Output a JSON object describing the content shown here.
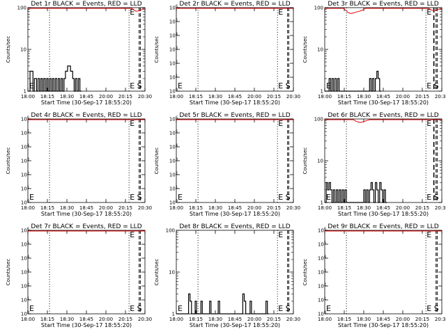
{
  "chart_data": [
    {
      "type": "line",
      "title": "Det 1r BLACK = Events, RED = LLD",
      "xlabel": "Start Time (30-Sep-17 18:55:20)",
      "ylabel": "Counts/sec",
      "yscale": "log",
      "ytick_labels": [
        "1",
        "10",
        "100"
      ],
      "ylim": [
        1,
        100
      ],
      "events": [
        [
          0,
          1
        ],
        [
          0.15,
          3
        ],
        [
          0.35,
          1
        ],
        [
          0.45,
          2
        ],
        [
          0.6,
          1
        ],
        [
          0.7,
          2
        ],
        [
          0.8,
          1
        ],
        [
          0.9,
          2
        ],
        [
          1.0,
          1
        ],
        [
          1.1,
          2
        ],
        [
          1.2,
          1
        ],
        [
          1.3,
          2
        ],
        [
          1.4,
          1
        ],
        [
          1.5,
          2
        ],
        [
          1.6,
          1
        ],
        [
          1.7,
          2
        ],
        [
          1.8,
          1
        ],
        [
          1.9,
          2
        ],
        [
          2.0,
          1
        ],
        [
          2.1,
          2
        ],
        [
          2.2,
          1
        ],
        [
          2.3,
          2
        ],
        [
          2.4,
          1
        ],
        [
          2.5,
          2
        ],
        [
          2.6,
          3
        ],
        [
          2.75,
          4
        ],
        [
          2.95,
          3
        ],
        [
          3.1,
          2
        ],
        [
          3.2,
          1
        ],
        [
          3.3,
          2
        ],
        [
          3.4,
          1
        ],
        [
          3.5,
          2
        ],
        [
          3.6,
          1
        ]
      ],
      "lld": [
        [
          0,
          100
        ],
        [
          7.2,
          100
        ],
        [
          7.35,
          90
        ],
        [
          7.5,
          85
        ],
        [
          7.7,
          88
        ],
        [
          7.85,
          92
        ],
        [
          8.0,
          100
        ],
        [
          8.1,
          100
        ]
      ]
    },
    {
      "type": "line",
      "title": "Det 2r BLACK = Events, RED = LLD",
      "xlabel": "Start Time (30-Sep-17 18:55:20)",
      "ylabel": "Counts/sec",
      "yscale": "log",
      "ytick_labels": [
        "10^0",
        "10^1",
        "10^2",
        "10^3",
        "10^4",
        "10^5",
        "10^6"
      ],
      "ylim": [
        1,
        1000000
      ],
      "events": [],
      "lld": [
        [
          0,
          1000000
        ],
        [
          8.1,
          1000000
        ]
      ]
    },
    {
      "type": "line",
      "title": "Det 3r BLACK = Events, RED = LLD",
      "xlabel": "Start Time (30-Sep-17 18:55:20)",
      "ylabel": "Counts/sec",
      "yscale": "log",
      "ytick_labels": [
        "1",
        "10",
        "100"
      ],
      "ylim": [
        1,
        100
      ],
      "events": [
        [
          0,
          1
        ],
        [
          0.3,
          2
        ],
        [
          0.4,
          1
        ],
        [
          0.5,
          2
        ],
        [
          0.6,
          1
        ],
        [
          0.7,
          2
        ],
        [
          0.8,
          1
        ],
        [
          0.9,
          2
        ],
        [
          1.0,
          1
        ],
        [
          3.0,
          1
        ],
        [
          3.1,
          2
        ],
        [
          3.2,
          1
        ],
        [
          3.3,
          2
        ],
        [
          3.4,
          1
        ],
        [
          3.5,
          2
        ],
        [
          3.6,
          3
        ],
        [
          3.7,
          2
        ],
        [
          3.8,
          1
        ]
      ],
      "lld": [
        [
          0,
          100
        ],
        [
          1.3,
          100
        ],
        [
          1.45,
          90
        ],
        [
          1.6,
          80
        ],
        [
          1.8,
          75
        ],
        [
          2.0,
          78
        ],
        [
          2.2,
          82
        ],
        [
          2.4,
          85
        ],
        [
          2.6,
          90
        ],
        [
          2.8,
          100
        ],
        [
          7.2,
          100
        ],
        [
          7.35,
          92
        ],
        [
          7.5,
          88
        ],
        [
          7.7,
          90
        ],
        [
          7.9,
          95
        ],
        [
          8.1,
          100
        ]
      ]
    },
    {
      "type": "line",
      "title": "Det 4r BLACK = Events, RED = LLD",
      "xlabel": "Start Time (30-Sep-17 18:55:20)",
      "ylabel": "Counts/sec",
      "yscale": "log",
      "ytick_labels": [
        "10^0",
        "10^1",
        "10^2",
        "10^3",
        "10^4",
        "10^5",
        "10^6"
      ],
      "ylim": [
        1,
        1000000
      ],
      "events": [],
      "lld": [
        [
          0,
          1000000
        ],
        [
          8.1,
          1000000
        ]
      ]
    },
    {
      "type": "line",
      "title": "Det 5r BLACK = Events, RED = LLD",
      "xlabel": "Start Time (30-Sep-17 18:55:20)",
      "ylabel": "Counts/sec",
      "yscale": "log",
      "ytick_labels": [
        "10^0",
        "10^1",
        "10^2",
        "10^3",
        "10^4",
        "10^5",
        "10^6"
      ],
      "ylim": [
        1,
        1000000
      ],
      "events": [],
      "lld": [
        [
          0,
          1000000
        ],
        [
          8.1,
          1000000
        ]
      ]
    },
    {
      "type": "line",
      "title": "Det 6r BLACK = Events, RED = LLD",
      "xlabel": "Start Time (30-Sep-17 18:55:20)",
      "ylabel": "Counts/sec",
      "yscale": "log",
      "ytick_labels": [
        "1",
        "10",
        "100"
      ],
      "ylim": [
        1,
        100
      ],
      "events": [
        [
          0,
          1
        ],
        [
          0.1,
          3
        ],
        [
          0.2,
          2
        ],
        [
          0.3,
          3
        ],
        [
          0.4,
          2
        ],
        [
          0.5,
          1
        ],
        [
          0.6,
          2
        ],
        [
          0.7,
          1
        ],
        [
          0.8,
          2
        ],
        [
          0.9,
          1
        ],
        [
          1.0,
          2
        ],
        [
          1.1,
          1
        ],
        [
          1.2,
          2
        ],
        [
          1.3,
          1
        ],
        [
          1.4,
          2
        ],
        [
          1.5,
          1
        ],
        [
          2.6,
          1
        ],
        [
          2.7,
          2
        ],
        [
          2.8,
          1
        ],
        [
          2.9,
          2
        ],
        [
          3.0,
          1
        ],
        [
          3.1,
          2
        ],
        [
          3.2,
          3
        ],
        [
          3.3,
          2
        ],
        [
          3.4,
          1
        ],
        [
          3.5,
          3
        ],
        [
          3.6,
          2
        ],
        [
          3.7,
          1
        ],
        [
          3.8,
          3
        ],
        [
          3.9,
          2
        ],
        [
          4.0,
          1
        ],
        [
          4.1,
          2
        ],
        [
          4.2,
          1
        ]
      ],
      "lld": [
        [
          0,
          100
        ],
        [
          2.0,
          100
        ],
        [
          2.15,
          92
        ],
        [
          2.3,
          88
        ],
        [
          2.5,
          86
        ],
        [
          2.7,
          90
        ],
        [
          2.9,
          95
        ],
        [
          3.1,
          100
        ],
        [
          8.1,
          100
        ]
      ]
    },
    {
      "type": "line",
      "title": "Det 7r BLACK = Events, RED = LLD",
      "xlabel": "Start Time (30-Sep-17 18:55:20)",
      "ylabel": "Counts/sec",
      "yscale": "log",
      "ytick_labels": [
        "10^0",
        "10^1",
        "10^2",
        "10^3",
        "10^4",
        "10^5",
        "10^6"
      ],
      "ylim": [
        1,
        1000000
      ],
      "events": [],
      "lld": [
        [
          0,
          1000000
        ],
        [
          8.1,
          1000000
        ]
      ]
    },
    {
      "type": "line",
      "title": "Det 8r BLACK = Events, RED = LLD",
      "xlabel": "Start Time (30-Sep-17 18:55:20)",
      "ylabel": "Counts/sec",
      "yscale": "log",
      "ytick_labels": [
        "1",
        "10",
        "100"
      ],
      "ylim": [
        1,
        100
      ],
      "events": [
        [
          0,
          1
        ],
        [
          0.85,
          3
        ],
        [
          0.95,
          2
        ],
        [
          1.05,
          1
        ],
        [
          1.3,
          2
        ],
        [
          1.4,
          1
        ],
        [
          1.7,
          2
        ],
        [
          1.8,
          1
        ],
        [
          2.3,
          2
        ],
        [
          2.4,
          1
        ],
        [
          2.9,
          2
        ],
        [
          3.0,
          1
        ],
        [
          4.6,
          3
        ],
        [
          4.7,
          2
        ],
        [
          4.8,
          1
        ],
        [
          5.1,
          2
        ],
        [
          5.2,
          1
        ],
        [
          6.2,
          2
        ],
        [
          6.3,
          1
        ]
      ],
      "lld": []
    },
    {
      "type": "line",
      "title": "Det 9r BLACK = Events, RED = LLD",
      "xlabel": "Start Time (30-Sep-17 18:55:20)",
      "ylabel": "Counts/sec",
      "yscale": "log",
      "ytick_labels": [
        "10^0",
        "10^1",
        "10^2",
        "10^3",
        "10^4",
        "10^5",
        "10^6"
      ],
      "ylim": [
        1,
        1000000
      ],
      "events": [],
      "lld": [
        [
          0,
          1000000
        ],
        [
          8.1,
          1000000
        ]
      ]
    }
  ],
  "shared": {
    "xtick_labels": [
      "18:00",
      "18:15",
      "18:30",
      "18:45",
      "20:00",
      "20:15",
      "20:30"
    ],
    "xlim": [
      0,
      8.1
    ],
    "vlines_dotted": [
      1.5,
      7.0
    ],
    "vlines_dashed": [
      7.7,
      7.78
    ],
    "markers": [
      "E",
      "S"
    ],
    "colors": {
      "events": "#000000",
      "lld": "#e00000"
    }
  }
}
